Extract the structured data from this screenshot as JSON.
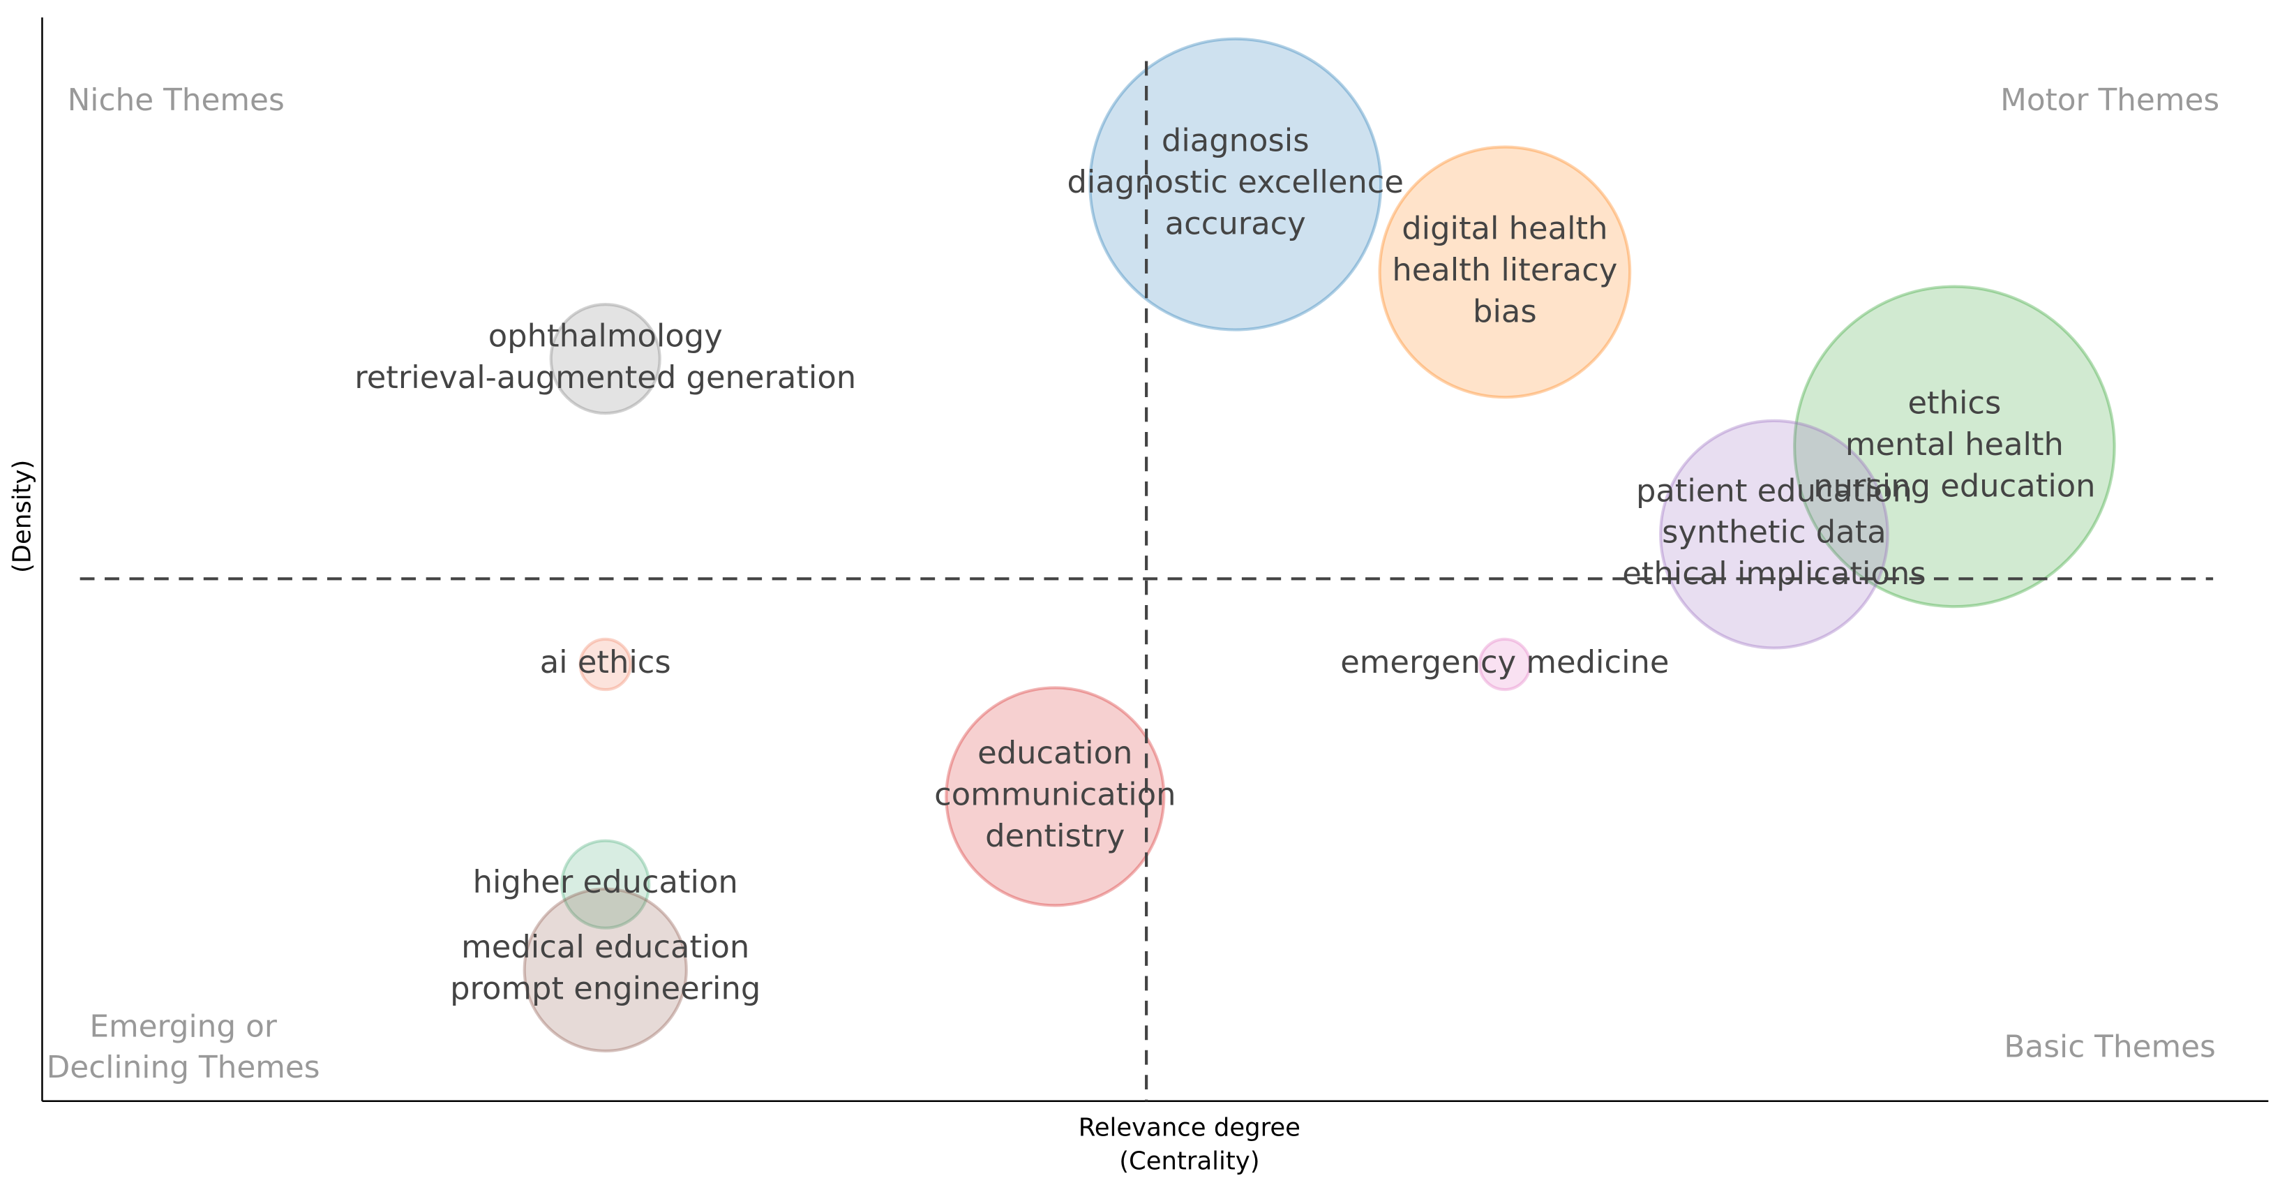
{
  "chart_data": {
    "type": "bubble",
    "xlabel": [
      "Relevance degree",
      "(Centrality)"
    ],
    "ylabel": "(Density)",
    "xlim": [
      0,
      1
    ],
    "ylim": [
      0,
      1
    ],
    "vline": 0.496,
    "hline": 0.482,
    "quadrants": {
      "top_left": [
        "Niche Themes"
      ],
      "top_right": [
        "Motor Themes"
      ],
      "bottom_left": [
        "Emerging or",
        "Declining Themes"
      ],
      "bottom_right": [
        "Basic Themes"
      ]
    },
    "points": [
      {
        "labels": [
          "diagnosis",
          "diagnostic excellence",
          "accuracy"
        ],
        "x": 0.536,
        "y": 0.846,
        "size": 100,
        "color": "#1f77b4"
      },
      {
        "labels": [
          "digital health",
          "health literacy",
          "bias"
        ],
        "x": 0.657,
        "y": 0.765,
        "size": 74,
        "color": "#ff7f0e"
      },
      {
        "labels": [
          "ophthalmology",
          "retrieval-augmented generation"
        ],
        "x": 0.253,
        "y": 0.685,
        "size": 14,
        "color": "#7f7f7f"
      },
      {
        "labels": [
          "ethics",
          "mental health",
          "nursing education"
        ],
        "x": 0.859,
        "y": 0.604,
        "size": 121,
        "color": "#2ca02c"
      },
      {
        "labels": [
          "patient education",
          "synthetic data",
          "ethical implications"
        ],
        "x": 0.778,
        "y": 0.523,
        "size": 61,
        "color": "#9467bd"
      },
      {
        "labels": [
          "ai ethics"
        ],
        "x": 0.253,
        "y": 0.403,
        "size": 3,
        "color": "#f08060"
      },
      {
        "labels": [
          "emergency medicine"
        ],
        "x": 0.657,
        "y": 0.403,
        "size": 3,
        "color": "#e377c2"
      },
      {
        "labels": [
          "education",
          "communication",
          "dentistry"
        ],
        "x": 0.455,
        "y": 0.281,
        "size": 56,
        "color": "#d62728"
      },
      {
        "labels": [
          "higher education"
        ],
        "x": 0.253,
        "y": 0.2,
        "size": 9,
        "color": "#4daf7c"
      },
      {
        "labels": [
          "medical education",
          "prompt engineering"
        ],
        "x": 0.253,
        "y": 0.121,
        "size": 31,
        "color": "#8c564b"
      }
    ]
  }
}
